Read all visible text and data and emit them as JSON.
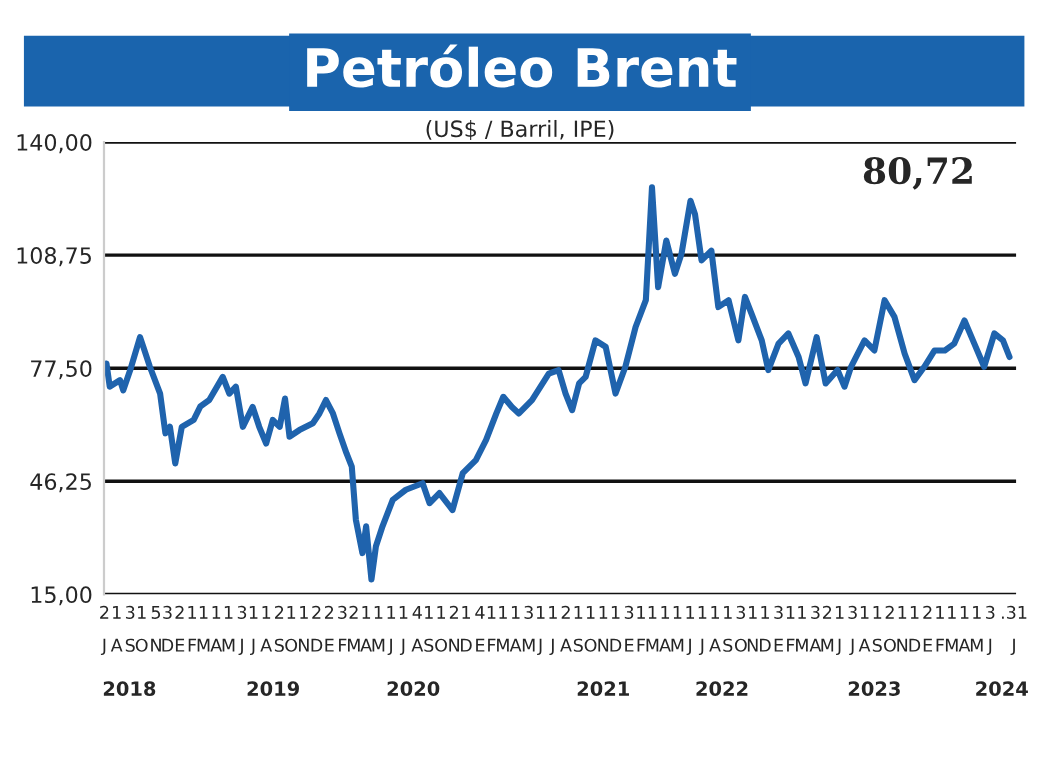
{
  "chart_data": {
    "type": "line",
    "title": "Petróleo Brent",
    "subtitle": "(US$ / Barril, IPE)",
    "annotations": [
      "80,72"
    ],
    "series": [
      {
        "color": "#1f63ad",
        "x": [
          "2018-07-07",
          "2018-07-15",
          "2018-08-09",
          "2018-08-17",
          "2018-09-03",
          "2018-09-27",
          "2018-10-05",
          "2018-10-21",
          "2018-11-15",
          "2018-11-28",
          "2018-12-09",
          "2018-12-22",
          "2019-01-07",
          "2019-02-05",
          "2019-02-21",
          "2019-03-15",
          "2019-04-17",
          "2019-05-03",
          "2019-05-19",
          "2019-06-05",
          "2019-06-29",
          "2019-07-15",
          "2019-08-01",
          "2019-08-17",
          "2019-09-03",
          "2019-09-16",
          "2019-09-27",
          "2019-10-21",
          "2019-11-23",
          "2019-12-09",
          "2019-12-25",
          "2020-01-11",
          "2020-01-27",
          "2020-02-13",
          "2020-02-26",
          "2020-03-07",
          "2020-03-23",
          "2020-04-01",
          "2020-04-14",
          "2020-04-25",
          "2020-05-11",
          "2020-06-05",
          "2020-07-07",
          "2020-08-17",
          "2020-09-03",
          "2020-09-27",
          "2020-10-29",
          "2020-11-23",
          "2020-12-25",
          "2021-01-19",
          "2021-02-13",
          "2021-03-02",
          "2021-03-23",
          "2021-04-09",
          "2021-05-11",
          "2021-06-21",
          "2021-07-15",
          "2021-08-01",
          "2021-08-17",
          "2021-09-03",
          "2021-09-19",
          "2021-10-13",
          "2021-11-07",
          "2021-12-01",
          "2021-12-25",
          "2022-01-19",
          "2022-02-13",
          "2022-02-28",
          "2022-03-15",
          "2022-04-04",
          "2022-04-25",
          "2022-05-11",
          "2022-06-02",
          "2022-06-13",
          "2022-06-29",
          "2022-07-23",
          "2022-08-09",
          "2022-09-03",
          "2022-09-27",
          "2022-10-13",
          "2022-10-29",
          "2022-11-23",
          "2022-12-09",
          "2023-01-03",
          "2023-01-27",
          "2023-02-21",
          "2023-03-10",
          "2023-04-06",
          "2023-04-28",
          "2023-05-27",
          "2023-06-13",
          "2023-06-29",
          "2023-08-01",
          "2023-08-25",
          "2023-09-19",
          "2023-10-13",
          "2023-11-07",
          "2023-12-01",
          "2023-12-25",
          "2024-01-19",
          "2024-02-13",
          "2024-03-07",
          "2024-04-01",
          "2024-04-25",
          "2024-05-19",
          "2024-06-13",
          "2024-07-04",
          "2024-07-20"
        ],
        "values": [
          78.8,
          72.4,
          74.2,
          71.4,
          77.0,
          86.1,
          83.4,
          77.9,
          70.5,
          59.5,
          61.3,
          51.2,
          61.3,
          63.2,
          66.9,
          68.7,
          75.1,
          70.5,
          72.4,
          61.3,
          66.8,
          61.3,
          56.7,
          63.2,
          61.3,
          69.1,
          58.6,
          60.4,
          62.3,
          65.0,
          68.7,
          65.0,
          59.5,
          54.0,
          50.3,
          35.6,
          26.4,
          33.8,
          19.1,
          28.3,
          33.8,
          41.1,
          43.9,
          45.7,
          40.2,
          43.0,
          38.3,
          48.5,
          52.1,
          57.7,
          65.0,
          69.6,
          66.8,
          65.0,
          68.7,
          76.0,
          77.0,
          70.5,
          65.9,
          73.3,
          75.1,
          85.2,
          83.4,
          70.5,
          77.9,
          88.9,
          96.3,
          127.5,
          99.9,
          112.8,
          103.6,
          109.1,
          123.8,
          120.1,
          107.3,
          110.0,
          94.4,
          96.3,
          85.2,
          97.2,
          92.6,
          85.2,
          77.0,
          84.3,
          87.1,
          80.6,
          73.3,
          86.1,
          73.3,
          77.0,
          72.4,
          77.9,
          85.2,
          82.4,
          96.3,
          91.7,
          81.5,
          74.2,
          77.9,
          82.4,
          82.4,
          84.3,
          90.7,
          84.3,
          77.9,
          87.1,
          85.2,
          80.6
        ]
      }
    ],
    "xlim": [
      "2018-07-01",
      "2024-08-05"
    ],
    "xticks": [
      {
        "value": "2018-07-02",
        "label": "2\nJ"
      },
      {
        "value": "2018-08-01",
        "label": "1\nA"
      },
      {
        "value": "2018-09-03",
        "label": "3\nS"
      },
      {
        "value": "2018-10-01",
        "label": "1\nO"
      },
      {
        "value": "2018-11-05",
        "label": "5\nN"
      },
      {
        "value": "2018-12-03",
        "label": "3\nD"
      },
      {
        "value": "2019-01-02",
        "label": "2\nE"
      },
      {
        "value": "2019-02-01",
        "label": "1\nF"
      },
      {
        "value": "2019-03-01",
        "label": "1\nM"
      },
      {
        "value": "2019-04-01",
        "label": "1\nA"
      },
      {
        "value": "2019-05-01",
        "label": "1\nM"
      },
      {
        "value": "2019-06-03",
        "label": "3\nJ"
      },
      {
        "value": "2019-07-01",
        "label": "1\nJ"
      },
      {
        "value": "2019-08-01",
        "label": "1\nA"
      },
      {
        "value": "2019-09-02",
        "label": "2\nS"
      },
      {
        "value": "2019-10-01",
        "label": "1\nO"
      },
      {
        "value": "2019-11-01",
        "label": "1\nN"
      },
      {
        "value": "2019-12-02",
        "label": "2\nD"
      },
      {
        "value": "2020-01-02",
        "label": "2\nE"
      },
      {
        "value": "2020-02-03",
        "label": "3\nF"
      },
      {
        "value": "2020-03-02",
        "label": "2\nM"
      },
      {
        "value": "2020-04-01",
        "label": "1\nA"
      },
      {
        "value": "2020-05-01",
        "label": "1\nM"
      },
      {
        "value": "2020-06-01",
        "label": "1\nJ"
      },
      {
        "value": "2020-07-01",
        "label": "1\nJ"
      },
      {
        "value": "2020-08-04",
        "label": "4\nA"
      },
      {
        "value": "2020-09-01",
        "label": "1\nS"
      },
      {
        "value": "2020-10-01",
        "label": "1\nO"
      },
      {
        "value": "2020-11-02",
        "label": "2\nN"
      },
      {
        "value": "2020-12-01",
        "label": "1\nD"
      },
      {
        "value": "2021-01-04",
        "label": "4\nE"
      },
      {
        "value": "2021-02-01",
        "label": "1\nF"
      },
      {
        "value": "2021-03-01",
        "label": "1\nM"
      },
      {
        "value": "2021-04-01",
        "label": "1\nA"
      },
      {
        "value": "2021-05-03",
        "label": "3\nM"
      },
      {
        "value": "2021-06-01",
        "label": "1\nJ"
      },
      {
        "value": "2021-07-01",
        "label": "1\nJ"
      },
      {
        "value": "2021-08-02",
        "label": "2\nA"
      },
      {
        "value": "2021-09-01",
        "label": "1\nS"
      },
      {
        "value": "2021-10-01",
        "label": "1\nO"
      },
      {
        "value": "2021-11-01",
        "label": "1\nN"
      },
      {
        "value": "2021-12-01",
        "label": "1\nD"
      },
      {
        "value": "2022-01-03",
        "label": "3\nE"
      },
      {
        "value": "2022-02-01",
        "label": "1\nF"
      },
      {
        "value": "2022-03-01",
        "label": "1\nM"
      },
      {
        "value": "2022-04-01",
        "label": "1\nA"
      },
      {
        "value": "2022-05-01",
        "label": "1\nM"
      },
      {
        "value": "2022-06-01",
        "label": "1\nJ"
      },
      {
        "value": "2022-07-01",
        "label": "1\nJ"
      },
      {
        "value": "2022-08-01",
        "label": "1\nA"
      },
      {
        "value": "2022-09-01",
        "label": "1\nS"
      },
      {
        "value": "2022-10-03",
        "label": "3\nO"
      },
      {
        "value": "2022-11-01",
        "label": "1\nN"
      },
      {
        "value": "2022-12-01",
        "label": "1\nD"
      },
      {
        "value": "2023-01-03",
        "label": "3\nE"
      },
      {
        "value": "2023-02-01",
        "label": "1\nF"
      },
      {
        "value": "2023-03-01",
        "label": "1\nM"
      },
      {
        "value": "2023-04-03",
        "label": "3\nA"
      },
      {
        "value": "2023-05-02",
        "label": "2\nM"
      },
      {
        "value": "2023-06-01",
        "label": "1\nJ"
      },
      {
        "value": "2023-07-03",
        "label": "3\nJ"
      },
      {
        "value": "2023-08-01",
        "label": "1\nA"
      },
      {
        "value": "2023-09-01",
        "label": "1\nS"
      },
      {
        "value": "2023-10-02",
        "label": "2\nO"
      },
      {
        "value": "2023-11-01",
        "label": "1\nN"
      },
      {
        "value": "2023-12-01",
        "label": "1\nD"
      },
      {
        "value": "2024-01-02",
        "label": "2\nE"
      },
      {
        "value": "2024-02-01",
        "label": "1\nF"
      },
      {
        "value": "2024-03-01",
        "label": "1\nM"
      },
      {
        "value": "2024-04-01",
        "label": "1\nA"
      },
      {
        "value": "2024-05-01",
        "label": "1\nM"
      },
      {
        "value": "2024-06-03",
        "label": "3\nJ"
      },
      {
        "value": "2024-07-31",
        "label": ".31\nJ"
      }
    ],
    "x2lim": [
      "2018-07-01",
      "2024-08-05"
    ],
    "x2ticks": [
      {
        "value": "2018-09-01",
        "label": "2018"
      },
      {
        "value": "2019-08-18",
        "label": "2019"
      },
      {
        "value": "2020-07-25",
        "label": "2020"
      },
      {
        "value": "2021-11-01",
        "label": "2021"
      },
      {
        "value": "2022-08-18",
        "label": "2022"
      },
      {
        "value": "2023-08-25",
        "label": "2023"
      },
      {
        "value": "2024-07-01",
        "label": "2024"
      }
    ],
    "ylim": [
      15,
      140
    ],
    "yticks": [
      {
        "value": 15,
        "label": "15,00"
      },
      {
        "value": 46.25,
        "label": "46,25"
      },
      {
        "value": 77.5,
        "label": "77,50"
      },
      {
        "value": 108.75,
        "label": "108,75"
      },
      {
        "value": 140,
        "label": "140,00"
      }
    ],
    "grid": "y"
  }
}
